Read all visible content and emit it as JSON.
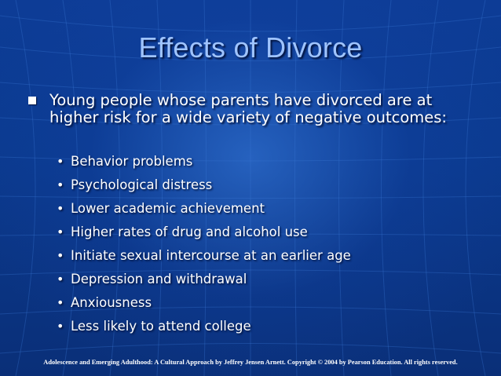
{
  "slide": {
    "title": "Effects of Divorce",
    "intro": "Young people whose parents have divorced are at higher risk for a wide variety of negative outcomes:",
    "bullet_symbol": "•",
    "items": [
      "Behavior problems",
      "Psychological distress",
      "Lower academic achievement",
      "Higher rates of drug and alcohol use",
      "Initiate sexual intercourse at an earlier age",
      "Depression and withdrawal",
      "Anxiousness",
      "Less likely to attend college"
    ],
    "footer": "Adolescence and Emerging Adulthood: A Cultural Approach by Jeffrey Jensen Arnett.  Copyright © 2004 by Pearson Education. All rights reserved."
  },
  "colors": {
    "background": "#0b3a8f",
    "title": "#9fc4ff",
    "text": "#ffffff"
  }
}
